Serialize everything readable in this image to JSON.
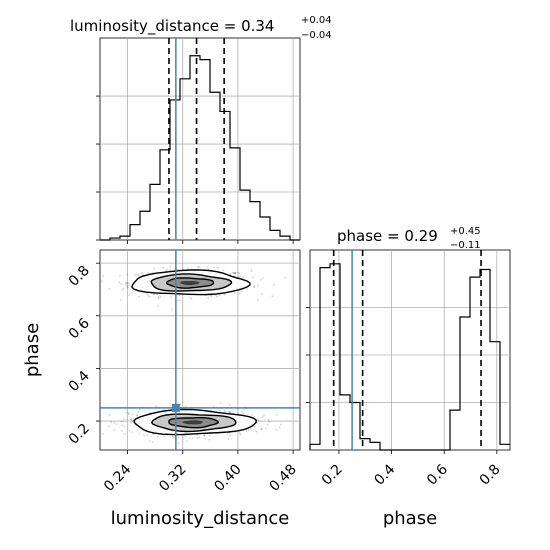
{
  "chart_data": {
    "type": "scatter",
    "subtype": "corner",
    "parameters": [
      "luminosity_distance",
      "phase"
    ],
    "truth": {
      "luminosity_distance": 0.31,
      "phase": 0.25
    },
    "truth_color": "#4682b4",
    "titles": {
      "luminosity_distance": {
        "name": "luminosity_distance",
        "value": "0.34",
        "plus": "+0.04",
        "minus": "−0.04"
      },
      "phase": {
        "name": "phase",
        "value": "0.29",
        "plus": "+0.45",
        "minus": "−0.11"
      }
    },
    "quantiles": {
      "luminosity_distance": [
        0.3,
        0.34,
        0.38
      ],
      "phase": [
        0.18,
        0.29,
        0.74
      ]
    },
    "xlim": {
      "luminosity_distance": [
        0.2,
        0.49
      ],
      "phase": [
        0.09,
        0.85
      ]
    },
    "ylim_phase": [
      0.09,
      0.85
    ],
    "ticks": {
      "luminosity_distance": [
        0.24,
        0.32,
        0.4,
        0.48
      ],
      "luminosity_distance_labels": [
        "0.24",
        "0.32",
        "0.40",
        "0.48"
      ],
      "phase": [
        0.2,
        0.4,
        0.6,
        0.8
      ],
      "phase_labels": [
        "0.2",
        "0.4",
        "0.6",
        "0.8"
      ]
    },
    "axis_labels": {
      "x1": "luminosity_distance",
      "x2": "phase",
      "y2": "phase"
    },
    "hist_luminosity_distance": {
      "edges": [
        0.2,
        0.2145,
        0.229,
        0.2435,
        0.258,
        0.2725,
        0.287,
        0.3015,
        0.316,
        0.3305,
        0.345,
        0.3595,
        0.374,
        0.3885,
        0.403,
        0.4175,
        0.432,
        0.4465,
        0.461,
        0.4755,
        0.49
      ],
      "counts": [
        0.0,
        0.01,
        0.02,
        0.08,
        0.15,
        0.29,
        0.47,
        0.73,
        0.84,
        0.96,
        0.94,
        0.77,
        0.67,
        0.48,
        0.26,
        0.2,
        0.12,
        0.05,
        0.02,
        0.0
      ]
    },
    "hist_phase": {
      "edges": [
        0.09,
        0.128,
        0.166,
        0.204,
        0.242,
        0.28,
        0.318,
        0.356,
        0.394,
        0.432,
        0.47,
        0.508,
        0.546,
        0.584,
        0.622,
        0.66,
        0.698,
        0.736,
        0.774,
        0.812,
        0.85
      ],
      "counts": [
        0.03,
        0.96,
        0.98,
        0.29,
        0.25,
        0.06,
        0.04,
        0.0,
        0.0,
        0.0,
        0.0,
        0.0,
        0.0,
        0.0,
        0.21,
        0.7,
        0.91,
        0.95,
        0.57,
        0.03
      ]
    },
    "modes": [
      {
        "x": 0.33,
        "y": 0.725,
        "sx": 0.04,
        "sy": 0.022
      },
      {
        "x": 0.335,
        "y": 0.195,
        "sx": 0.042,
        "sy": 0.022
      }
    ],
    "grid": true
  }
}
